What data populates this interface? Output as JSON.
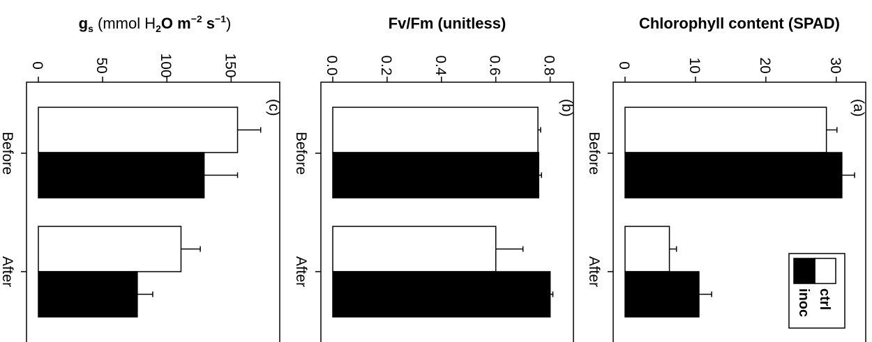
{
  "chart_data": [
    {
      "type": "bar",
      "panel": "(c)",
      "title_parts": {
        "pre": "g",
        "sub_s": "s",
        "mid1": " (mmol H",
        "sub_2": "2",
        "mid2": "O m",
        "sup1": "−2",
        "mid3": " s",
        "sup2": "−1",
        "end": ")"
      },
      "categories": [
        "Before",
        "After"
      ],
      "series": [
        {
          "name": "ctrl",
          "values": [
            155,
            111
          ],
          "errors": [
            18,
            15
          ],
          "color": "#ffffff"
        },
        {
          "name": "inoc",
          "values": [
            129,
            77
          ],
          "errors": [
            26,
            12
          ],
          "color": "#000000"
        }
      ],
      "ylim": [
        0,
        171
      ],
      "ticks": [
        0,
        50,
        100,
        150
      ],
      "tick_labels": [
        "0",
        "50",
        "100",
        "150"
      ]
    },
    {
      "type": "bar",
      "panel": "(b)",
      "title": "Fv/Fm (unitless)",
      "categories": [
        "Before",
        "After"
      ],
      "series": [
        {
          "name": "ctrl",
          "values": [
            0.755,
            0.6
          ],
          "errors": [
            0.01,
            0.1
          ],
          "color": "#ffffff"
        },
        {
          "name": "inoc",
          "values": [
            0.758,
            0.8
          ],
          "errors": [
            0.01,
            0.01
          ],
          "color": "#000000"
        }
      ],
      "ylim": [
        0,
        0.842
      ],
      "ticks": [
        0,
        0.2,
        0.4,
        0.6,
        0.8
      ],
      "tick_labels": [
        "0.0",
        "0.2",
        "0.4",
        "0.6",
        "0.8"
      ]
    },
    {
      "type": "bar",
      "panel": "(a)",
      "title": "Chlorophyll content (SPAD)",
      "categories": [
        "Before",
        "After"
      ],
      "series": [
        {
          "name": "ctrl",
          "values": [
            28.6,
            6.3
          ],
          "errors": [
            1.5,
            1.0
          ],
          "color": "#ffffff"
        },
        {
          "name": "inoc",
          "values": [
            30.8,
            10.5
          ],
          "errors": [
            1.8,
            1.8
          ],
          "color": "#000000"
        }
      ],
      "ylim": [
        0,
        32.5
      ],
      "ticks": [
        0,
        10,
        20,
        30
      ],
      "tick_labels": [
        "0",
        "10",
        "20",
        "30"
      ],
      "legend": {
        "position": "bottom-right",
        "entries": [
          "ctrl",
          "inoc"
        ]
      }
    }
  ]
}
